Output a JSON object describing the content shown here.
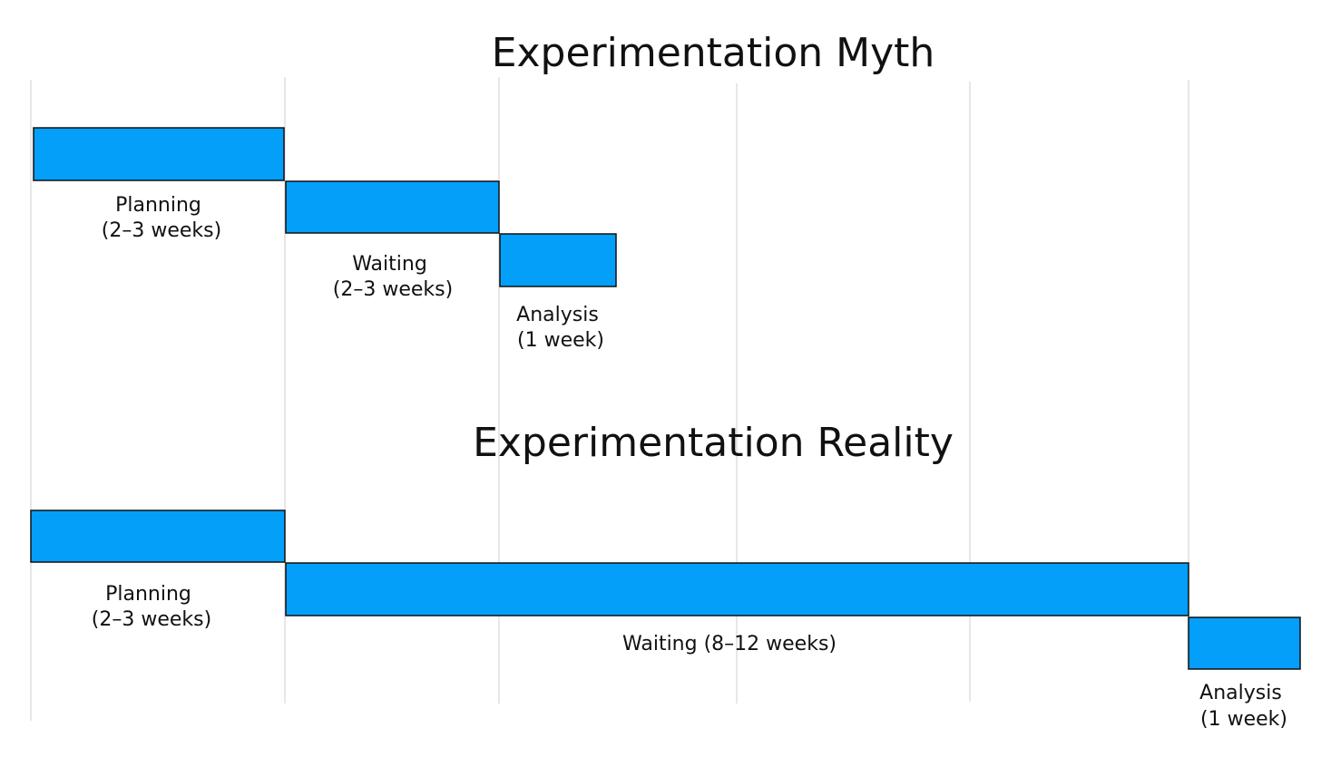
{
  "colors": {
    "bar_fill": "#039ff9",
    "bar_stroke": "#111111",
    "gridline": "#cfcfcf",
    "text": "#111111"
  },
  "myth": {
    "title": "Experimentation Myth",
    "phases": [
      {
        "line1": "Planning",
        "line2": "(2–3 weeks)"
      },
      {
        "line1": "Waiting",
        "line2": "(2–3 weeks)"
      },
      {
        "line1": "Analysis",
        "line2": "(1 week)"
      }
    ]
  },
  "reality": {
    "title": "Experimentation Reality",
    "phases": [
      {
        "line1": "Planning",
        "line2": "(2–3 weeks)"
      },
      {
        "line1": "Waiting (8–12 weeks)",
        "line2": ""
      },
      {
        "line1": "Analysis",
        "line2": "(1 week)"
      }
    ]
  }
}
